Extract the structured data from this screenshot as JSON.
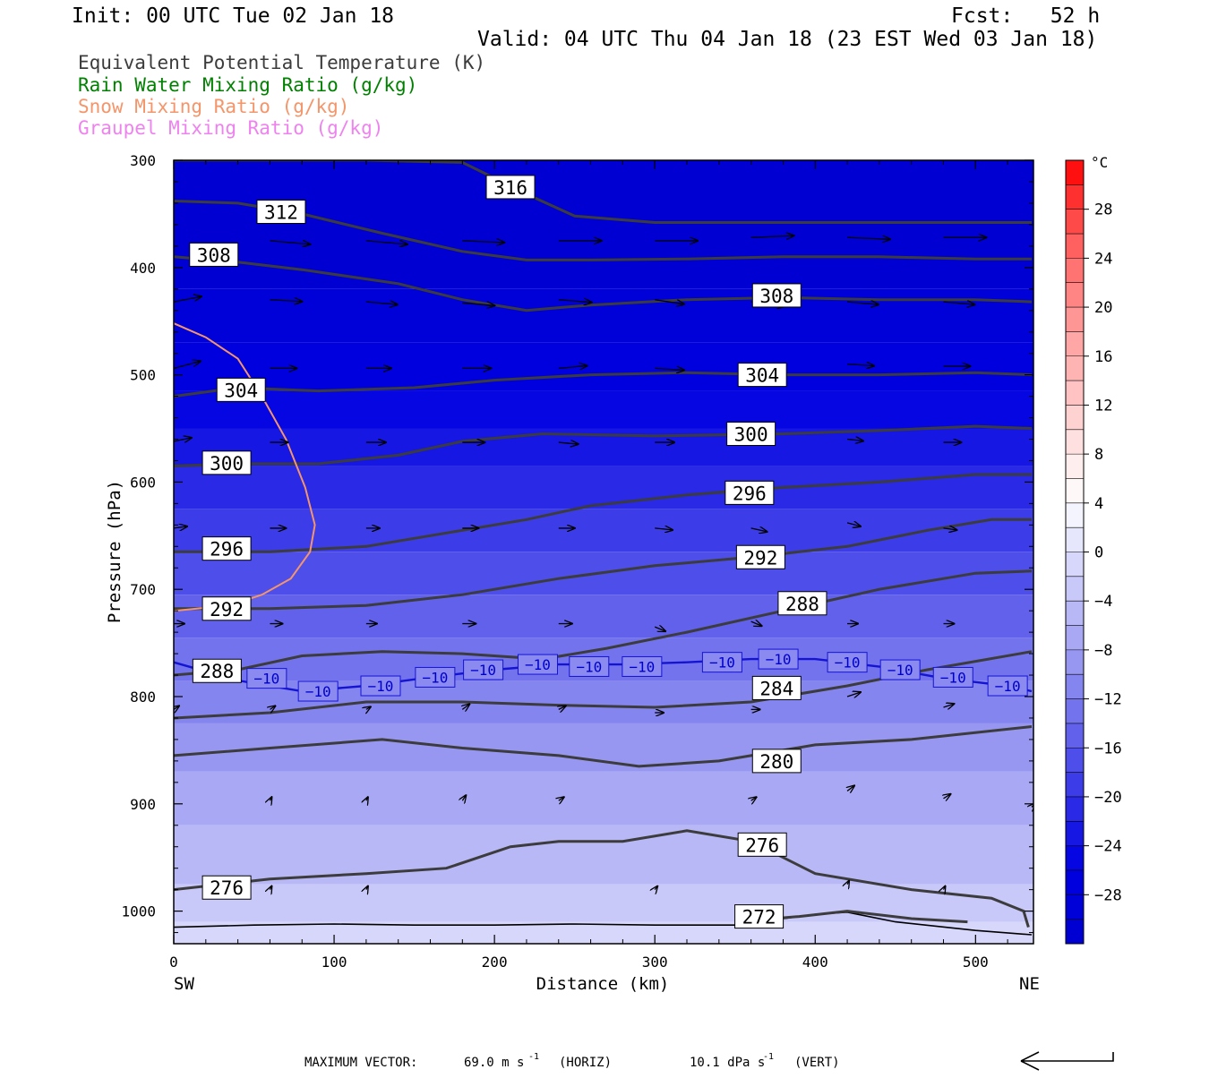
{
  "header": {
    "init": "Init: 00 UTC Tue 02 Jan 18",
    "fcst": "Fcst:   52 h",
    "valid": "Valid: 04 UTC Thu 04 Jan 18 (23 EST Wed 03 Jan 18)"
  },
  "footer": {
    "max_vector_label": "MAXIMUM VECTOR:",
    "horiz_value": "69.0 m s",
    "horiz_unit": "(HORIZ)",
    "vert_value": "10.1 dPa s",
    "vert_unit": "(VERT)",
    "exponent": "-1"
  },
  "colors": {
    "theta_e": "#3c3c3c",
    "rain": "#008000",
    "snow": "#f4956a",
    "graupel": "#ee82ee",
    "isotherm": "#1414d2",
    "arrow": "#000000"
  },
  "chart_data": {
    "type": "contour",
    "xlabel": "Distance (km)",
    "ylabel": "Pressure (hPa)",
    "xlim": [
      0,
      535
    ],
    "ylim": [
      1030,
      300
    ],
    "x_ticks": [
      0,
      100,
      200,
      300,
      400,
      500
    ],
    "y_ticks": [
      300,
      400,
      500,
      600,
      700,
      800,
      900,
      1000
    ],
    "x_end_labels": {
      "left": "SW",
      "right": "NE"
    },
    "legend": [
      {
        "name": "Equivalent Potential Temperature (K)",
        "color": "#3c3c3c"
      },
      {
        "name": "Rain Water Mixing Ratio (g/kg)",
        "color": "#008000"
      },
      {
        "name": "Snow Mixing Ratio (g/kg)",
        "color": "#f4956a"
      },
      {
        "name": "Graupel Mixing Ratio (g/kg)",
        "color": "#ee82ee"
      }
    ],
    "colorbar": {
      "unit": "°C",
      "labels": [
        28,
        24,
        20,
        16,
        12,
        8,
        4,
        0,
        -4,
        -8,
        -12,
        -16,
        -20,
        -24,
        -28
      ],
      "levels": [
        32,
        30,
        28,
        26,
        24,
        22,
        20,
        18,
        16,
        14,
        12,
        10,
        8,
        6,
        4,
        2,
        0,
        -2,
        -4,
        -6,
        -8,
        -10,
        -12,
        -14,
        -16,
        -18,
        -20,
        -22,
        -24,
        -26,
        -28,
        -30,
        -32
      ],
      "colors": [
        "#ff1010",
        "#ff3030",
        "#ff4a4a",
        "#ff6060",
        "#ff7373",
        "#ff8585",
        "#ff9696",
        "#ffa6a6",
        "#ffb4b4",
        "#ffc3c3",
        "#ffd2d2",
        "#ffe0e0",
        "#ffeeee",
        "#fff8f8",
        "#f4f4ff",
        "#e6e6fd",
        "#d7d7fb",
        "#c8c8f9",
        "#b8b8f7",
        "#a8a8f5",
        "#9797f2",
        "#8585f0",
        "#7373ee",
        "#6161ec",
        "#4e4eea",
        "#3c3ce8",
        "#2929e6",
        "#1717e4",
        "#0606e2",
        "#0000de",
        "#0000d8",
        "#0000d2"
      ]
    },
    "temperature_layers": [
      {
        "temp": -30,
        "p": 300
      },
      {
        "temp": -28,
        "p": 420
      },
      {
        "temp": -26,
        "p": 470
      },
      {
        "temp": -24,
        "p": 515
      },
      {
        "temp": -22,
        "p": 550
      },
      {
        "temp": -20,
        "p": 585
      },
      {
        "temp": -18,
        "p": 625
      },
      {
        "temp": -16,
        "p": 665
      },
      {
        "temp": -14,
        "p": 705
      },
      {
        "temp": -12,
        "p": 745
      },
      {
        "temp": -10,
        "p": 785
      },
      {
        "temp": -8,
        "p": 825
      },
      {
        "temp": -6,
        "p": 870
      },
      {
        "temp": -4,
        "p": 920
      },
      {
        "temp": -2,
        "p": 975
      },
      {
        "temp": 0,
        "p": 1010
      }
    ],
    "theta_e_contours": [
      {
        "label": "316",
        "x": [
          0,
          60,
          120,
          180,
          225,
          250,
          300,
          350,
          400,
          450,
          535
        ],
        "p": [
          300,
          300,
          300,
          302,
          335,
          352,
          358,
          358,
          358,
          358,
          358
        ]
      },
      {
        "label": "312",
        "x": [
          0,
          40,
          80,
          130,
          180,
          220,
          260,
          320,
          380,
          440,
          500,
          535
        ],
        "p": [
          338,
          340,
          350,
          368,
          385,
          393,
          393,
          392,
          390,
          390,
          392,
          392
        ]
      },
      {
        "label": "308",
        "x": [
          0,
          40,
          80,
          140,
          180,
          220,
          260,
          320,
          380,
          440,
          500,
          535
        ],
        "p": [
          390,
          395,
          402,
          415,
          430,
          440,
          435,
          430,
          428,
          430,
          430,
          432
        ]
      },
      {
        "label": "304",
        "x": [
          0,
          40,
          90,
          150,
          200,
          260,
          320,
          380,
          440,
          500,
          535
        ],
        "p": [
          520,
          512,
          515,
          512,
          505,
          500,
          498,
          500,
          500,
          498,
          500
        ]
      },
      {
        "label": "300",
        "x": [
          0,
          40,
          90,
          140,
          180,
          230,
          300,
          380,
          440,
          500,
          535
        ],
        "p": [
          585,
          583,
          583,
          575,
          562,
          555,
          557,
          555,
          552,
          548,
          550
        ]
      },
      {
        "label": "296",
        "x": [
          0,
          60,
          120,
          180,
          220,
          260,
          320,
          380,
          440,
          500,
          535
        ],
        "p": [
          665,
          665,
          660,
          645,
          635,
          622,
          612,
          605,
          600,
          593,
          593
        ]
      },
      {
        "label": "292",
        "x": [
          0,
          60,
          120,
          180,
          240,
          300,
          360,
          420,
          470,
          510,
          535
        ],
        "p": [
          718,
          718,
          715,
          705,
          690,
          678,
          670,
          660,
          645,
          635,
          635
        ]
      },
      {
        "label": "288",
        "x": [
          0,
          40,
          80,
          130,
          180,
          230,
          270,
          320,
          380,
          440,
          500,
          535
        ],
        "p": [
          780,
          775,
          762,
          758,
          760,
          765,
          755,
          740,
          720,
          700,
          685,
          683
        ]
      },
      {
        "label": "284",
        "x": [
          0,
          60,
          120,
          180,
          240,
          300,
          360,
          420,
          470,
          535
        ],
        "p": [
          820,
          815,
          805,
          805,
          808,
          810,
          805,
          790,
          775,
          758
        ]
      },
      {
        "label": "280",
        "x": [
          0,
          60,
          130,
          180,
          240,
          290,
          340,
          400,
          460,
          535
        ],
        "p": [
          855,
          848,
          840,
          848,
          855,
          865,
          860,
          845,
          840,
          828
        ]
      },
      {
        "label": "276",
        "x": [
          0,
          60,
          120,
          170,
          210,
          240,
          280,
          320,
          360,
          400,
          460,
          510,
          530,
          533
        ],
        "p": [
          980,
          970,
          965,
          960,
          940,
          935,
          935,
          925,
          935,
          965,
          980,
          988,
          1000,
          1015
        ]
      },
      {
        "label": "272",
        "x": [
          350,
          390,
          420,
          460,
          495
        ],
        "p": [
          1010,
          1005,
          1000,
          1007,
          1010
        ]
      }
    ],
    "surface_contour": {
      "x": [
        0,
        50,
        100,
        150,
        200,
        250,
        300,
        350,
        400,
        420,
        450,
        500,
        535
      ],
      "p": [
        1015,
        1013,
        1012,
        1013,
        1013,
        1012,
        1013,
        1013,
        1003,
        1001,
        1010,
        1018,
        1022
      ]
    },
    "theta_e_labels": [
      {
        "text": "316",
        "x": 210,
        "p": 325
      },
      {
        "text": "312",
        "x": 67,
        "p": 348
      },
      {
        "text": "308",
        "x": 25,
        "p": 388
      },
      {
        "text": "308",
        "x": 376,
        "p": 426
      },
      {
        "text": "304",
        "x": 42,
        "p": 514
      },
      {
        "text": "304",
        "x": 367,
        "p": 500
      },
      {
        "text": "300",
        "x": 33,
        "p": 582
      },
      {
        "text": "300",
        "x": 360,
        "p": 555
      },
      {
        "text": "296",
        "x": 33,
        "p": 662
      },
      {
        "text": "296",
        "x": 359,
        "p": 610
      },
      {
        "text": "292",
        "x": 33,
        "p": 718
      },
      {
        "text": "292",
        "x": 366,
        "p": 670
      },
      {
        "text": "288",
        "x": 27,
        "p": 776
      },
      {
        "text": "288",
        "x": 392,
        "p": 713
      },
      {
        "text": "284",
        "x": 376,
        "p": 792
      },
      {
        "text": "280",
        "x": 376,
        "p": 860
      },
      {
        "text": "276",
        "x": 33,
        "p": 978
      },
      {
        "text": "276",
        "x": 367,
        "p": 938
      },
      {
        "text": "272",
        "x": 365,
        "p": 1005
      }
    ],
    "isotherm_minus10": {
      "x": [
        0,
        40,
        80,
        120,
        160,
        200,
        240,
        280,
        320,
        360,
        400,
        440,
        480,
        520,
        535
      ],
      "p": [
        768,
        785,
        795,
        790,
        782,
        775,
        770,
        770,
        768,
        765,
        765,
        772,
        783,
        790,
        795
      ]
    },
    "isotherm_labels": [
      {
        "x": 58,
        "p": 783
      },
      {
        "x": 90,
        "p": 795
      },
      {
        "x": 129,
        "p": 790
      },
      {
        "x": 163,
        "p": 782
      },
      {
        "x": 193,
        "p": 775
      },
      {
        "x": 227,
        "p": 770
      },
      {
        "x": 259,
        "p": 772
      },
      {
        "x": 292,
        "p": 772
      },
      {
        "x": 342,
        "p": 768
      },
      {
        "x": 377,
        "p": 765
      },
      {
        "x": 420,
        "p": 768
      },
      {
        "x": 453,
        "p": 775
      },
      {
        "x": 486,
        "p": 782
      },
      {
        "x": 520,
        "p": 790
      }
    ],
    "snow_contour": {
      "x": [
        0,
        20,
        40,
        55,
        70,
        82,
        88,
        85,
        73,
        55,
        35,
        0
      ],
      "p": [
        452,
        465,
        485,
        520,
        560,
        605,
        640,
        665,
        690,
        705,
        715,
        720
      ]
    },
    "wind_vectors": [
      {
        "x": 0,
        "p": 432,
        "dx": 31,
        "dy": -6
      },
      {
        "x": 60,
        "p": 430,
        "dx": 36,
        "dy": 2
      },
      {
        "x": 120,
        "p": 432,
        "dx": 35,
        "dy": 3
      },
      {
        "x": 180,
        "p": 433,
        "dx": 36,
        "dy": 3
      },
      {
        "x": 240,
        "p": 430,
        "dx": 37,
        "dy": 3
      },
      {
        "x": 300,
        "p": 430,
        "dx": 33,
        "dy": 5
      },
      {
        "x": 360,
        "p": 432,
        "dx": 38,
        "dy": 5
      },
      {
        "x": 420,
        "p": 432,
        "dx": 35,
        "dy": 3
      },
      {
        "x": 480,
        "p": 432,
        "dx": 35,
        "dy": 3
      },
      {
        "x": 60,
        "p": 375,
        "dx": 45,
        "dy": 4
      },
      {
        "x": 120,
        "p": 375,
        "dx": 46,
        "dy": 4
      },
      {
        "x": 180,
        "p": 375,
        "dx": 47,
        "dy": 2
      },
      {
        "x": 240,
        "p": 375,
        "dx": 48,
        "dy": 0
      },
      {
        "x": 300,
        "p": 375,
        "dx": 48,
        "dy": 0
      },
      {
        "x": 360,
        "p": 372,
        "dx": 48,
        "dy": -2
      },
      {
        "x": 420,
        "p": 372,
        "dx": 48,
        "dy": 2
      },
      {
        "x": 480,
        "p": 372,
        "dx": 48,
        "dy": 0
      },
      {
        "x": 0,
        "p": 494,
        "dx": 30,
        "dy": -8
      },
      {
        "x": 60,
        "p": 494,
        "dx": 30,
        "dy": 0
      },
      {
        "x": 120,
        "p": 494,
        "dx": 28,
        "dy": 0
      },
      {
        "x": 180,
        "p": 494,
        "dx": 32,
        "dy": 0
      },
      {
        "x": 240,
        "p": 494,
        "dx": 32,
        "dy": -3
      },
      {
        "x": 300,
        "p": 494,
        "dx": 33,
        "dy": 2
      },
      {
        "x": 360,
        "p": 494,
        "dx": 33,
        "dy": -3
      },
      {
        "x": 420,
        "p": 490,
        "dx": 30,
        "dy": 2
      },
      {
        "x": 480,
        "p": 492,
        "dx": 30,
        "dy": 0
      },
      {
        "x": 0,
        "p": 562,
        "dx": 20,
        "dy": -4
      },
      {
        "x": 60,
        "p": 563,
        "dx": 20,
        "dy": 0
      },
      {
        "x": 120,
        "p": 563,
        "dx": 22,
        "dy": 0
      },
      {
        "x": 180,
        "p": 563,
        "dx": 25,
        "dy": 0
      },
      {
        "x": 240,
        "p": 563,
        "dx": 22,
        "dy": 2
      },
      {
        "x": 300,
        "p": 563,
        "dx": 22,
        "dy": 0
      },
      {
        "x": 360,
        "p": 563,
        "dx": 20,
        "dy": 0
      },
      {
        "x": 420,
        "p": 560,
        "dx": 18,
        "dy": 2
      },
      {
        "x": 480,
        "p": 563,
        "dx": 20,
        "dy": 0
      },
      {
        "x": 0,
        "p": 643,
        "dx": 15,
        "dy": -2
      },
      {
        "x": 60,
        "p": 643,
        "dx": 18,
        "dy": 0
      },
      {
        "x": 120,
        "p": 643,
        "dx": 15,
        "dy": 0
      },
      {
        "x": 180,
        "p": 643,
        "dx": 18,
        "dy": 0
      },
      {
        "x": 240,
        "p": 643,
        "dx": 18,
        "dy": 0
      },
      {
        "x": 300,
        "p": 643,
        "dx": 20,
        "dy": 2
      },
      {
        "x": 360,
        "p": 643,
        "dx": 18,
        "dy": 4
      },
      {
        "x": 420,
        "p": 638,
        "dx": 15,
        "dy": 4
      },
      {
        "x": 480,
        "p": 643,
        "dx": 15,
        "dy": 2
      },
      {
        "x": 0,
        "p": 732,
        "dx": 12,
        "dy": 0
      },
      {
        "x": 60,
        "p": 732,
        "dx": 14,
        "dy": 0
      },
      {
        "x": 120,
        "p": 732,
        "dx": 12,
        "dy": 0
      },
      {
        "x": 180,
        "p": 732,
        "dx": 15,
        "dy": 0
      },
      {
        "x": 240,
        "p": 732,
        "dx": 15,
        "dy": 0
      },
      {
        "x": 300,
        "p": 735,
        "dx": 12,
        "dy": 5
      },
      {
        "x": 360,
        "p": 730,
        "dx": 12,
        "dy": 5
      },
      {
        "x": 420,
        "p": 732,
        "dx": 12,
        "dy": 0
      },
      {
        "x": 480,
        "p": 732,
        "dx": 12,
        "dy": 0
      },
      {
        "x": 0,
        "p": 812,
        "dx": 6,
        "dy": -4
      },
      {
        "x": 60,
        "p": 812,
        "dx": 6,
        "dy": -4
      },
      {
        "x": 120,
        "p": 812,
        "dx": 5,
        "dy": -3
      },
      {
        "x": 180,
        "p": 812,
        "dx": 8,
        "dy": -6
      },
      {
        "x": 240,
        "p": 812,
        "dx": 8,
        "dy": -4
      },
      {
        "x": 300,
        "p": 815,
        "dx": 10,
        "dy": 0
      },
      {
        "x": 360,
        "p": 812,
        "dx": 10,
        "dy": 0
      },
      {
        "x": 420,
        "p": 800,
        "dx": 15,
        "dy": -5
      },
      {
        "x": 480,
        "p": 810,
        "dx": 12,
        "dy": -4
      },
      {
        "x": 60,
        "p": 897,
        "dx": 2,
        "dy": -4
      },
      {
        "x": 120,
        "p": 897,
        "dx": 2,
        "dy": -4
      },
      {
        "x": 180,
        "p": 897,
        "dx": 4,
        "dy": -6
      },
      {
        "x": 240,
        "p": 897,
        "dx": 6,
        "dy": -4
      },
      {
        "x": 360,
        "p": 897,
        "dx": 6,
        "dy": -4
      },
      {
        "x": 420,
        "p": 888,
        "dx": 8,
        "dy": -6
      },
      {
        "x": 480,
        "p": 895,
        "dx": 8,
        "dy": -5
      },
      {
        "x": 535,
        "p": 903,
        "dx": 4,
        "dy": -4
      },
      {
        "x": 60,
        "p": 980,
        "dx": 2,
        "dy": -4
      },
      {
        "x": 120,
        "p": 980,
        "dx": 2,
        "dy": -4
      },
      {
        "x": 300,
        "p": 980,
        "dx": 3,
        "dy": -4
      },
      {
        "x": 420,
        "p": 975,
        "dx": 2,
        "dy": -4
      },
      {
        "x": 480,
        "p": 980,
        "dx": 2,
        "dy": -4
      }
    ]
  }
}
